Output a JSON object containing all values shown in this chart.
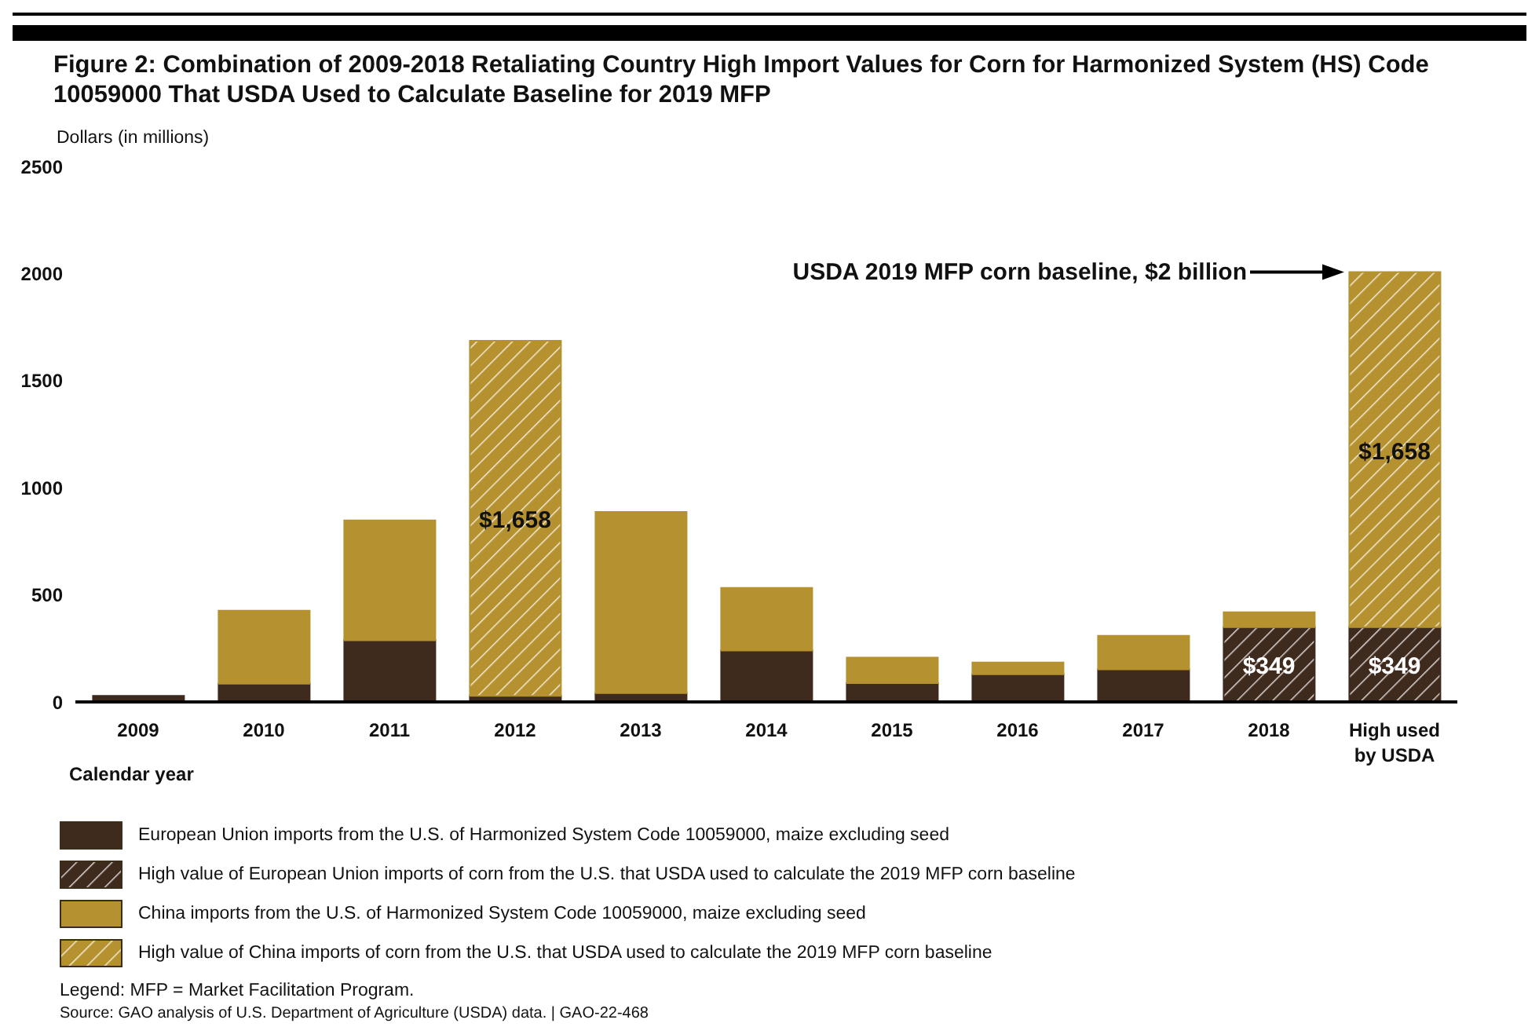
{
  "chart_data": {
    "type": "bar",
    "title": "Figure 2: Combination of 2009-2018 Retaliating Country High Import Values for Corn for Harmonized System (HS) Code 10059000 That USDA Used to Calculate Baseline for 2019 MFP",
    "ylabel": "Dollars (in millions)",
    "xlabel": "Calendar year",
    "categories": [
      "2009",
      "2010",
      "2011",
      "2012",
      "2013",
      "2014",
      "2015",
      "2016",
      "2017",
      "2018",
      "High used by USDA"
    ],
    "stacked": true,
    "series": [
      {
        "name": "European Union imports from the U.S. of Harmonized System Code 10059000, maize excluding seed",
        "color": "#3f2a1e",
        "values": [
          28,
          85,
          288,
          28,
          41,
          240,
          88,
          129,
          152,
          null,
          null
        ]
      },
      {
        "name": "High value of European Union imports of corn from the U.S. that USDA used to calculate the 2019 MFP corn baseline",
        "color": "#3f2a1e",
        "values": [
          null,
          null,
          null,
          null,
          null,
          null,
          null,
          null,
          null,
          349,
          349
        ],
        "value_labels": [
          null,
          null,
          null,
          null,
          null,
          null,
          null,
          null,
          null,
          "$349",
          "$349"
        ]
      },
      {
        "name": "China imports from the U.S. of Harmonized System Code 10059000, maize excluding seed",
        "color": "#b5922f",
        "values": [
          null,
          341,
          560,
          null,
          846,
          292,
          119,
          55,
          157,
          70,
          null
        ]
      },
      {
        "name": "High value of China imports of corn from the U.S. that USDA used to calculate the 2019 MFP corn baseline",
        "color": "#b5922f",
        "values": [
          null,
          null,
          null,
          1658,
          null,
          null,
          null,
          null,
          null,
          null,
          1658
        ],
        "value_labels": [
          null,
          null,
          null,
          "$1,658",
          null,
          null,
          null,
          null,
          null,
          null,
          "$1,658"
        ]
      }
    ],
    "ylim": [
      0,
      2500
    ],
    "yticks": [
      0,
      500,
      1000,
      1500,
      2000,
      2500
    ],
    "grid": false,
    "legend": "bottom",
    "annotations": [
      "USDA 2019 MFP corn baseline, $2 billion",
      "Legend: MFP = Market Facilitation Program.",
      "Source: GAO analysis of U.S. Department of Agriculture (USDA) data.  |  GAO-22-468"
    ]
  }
}
